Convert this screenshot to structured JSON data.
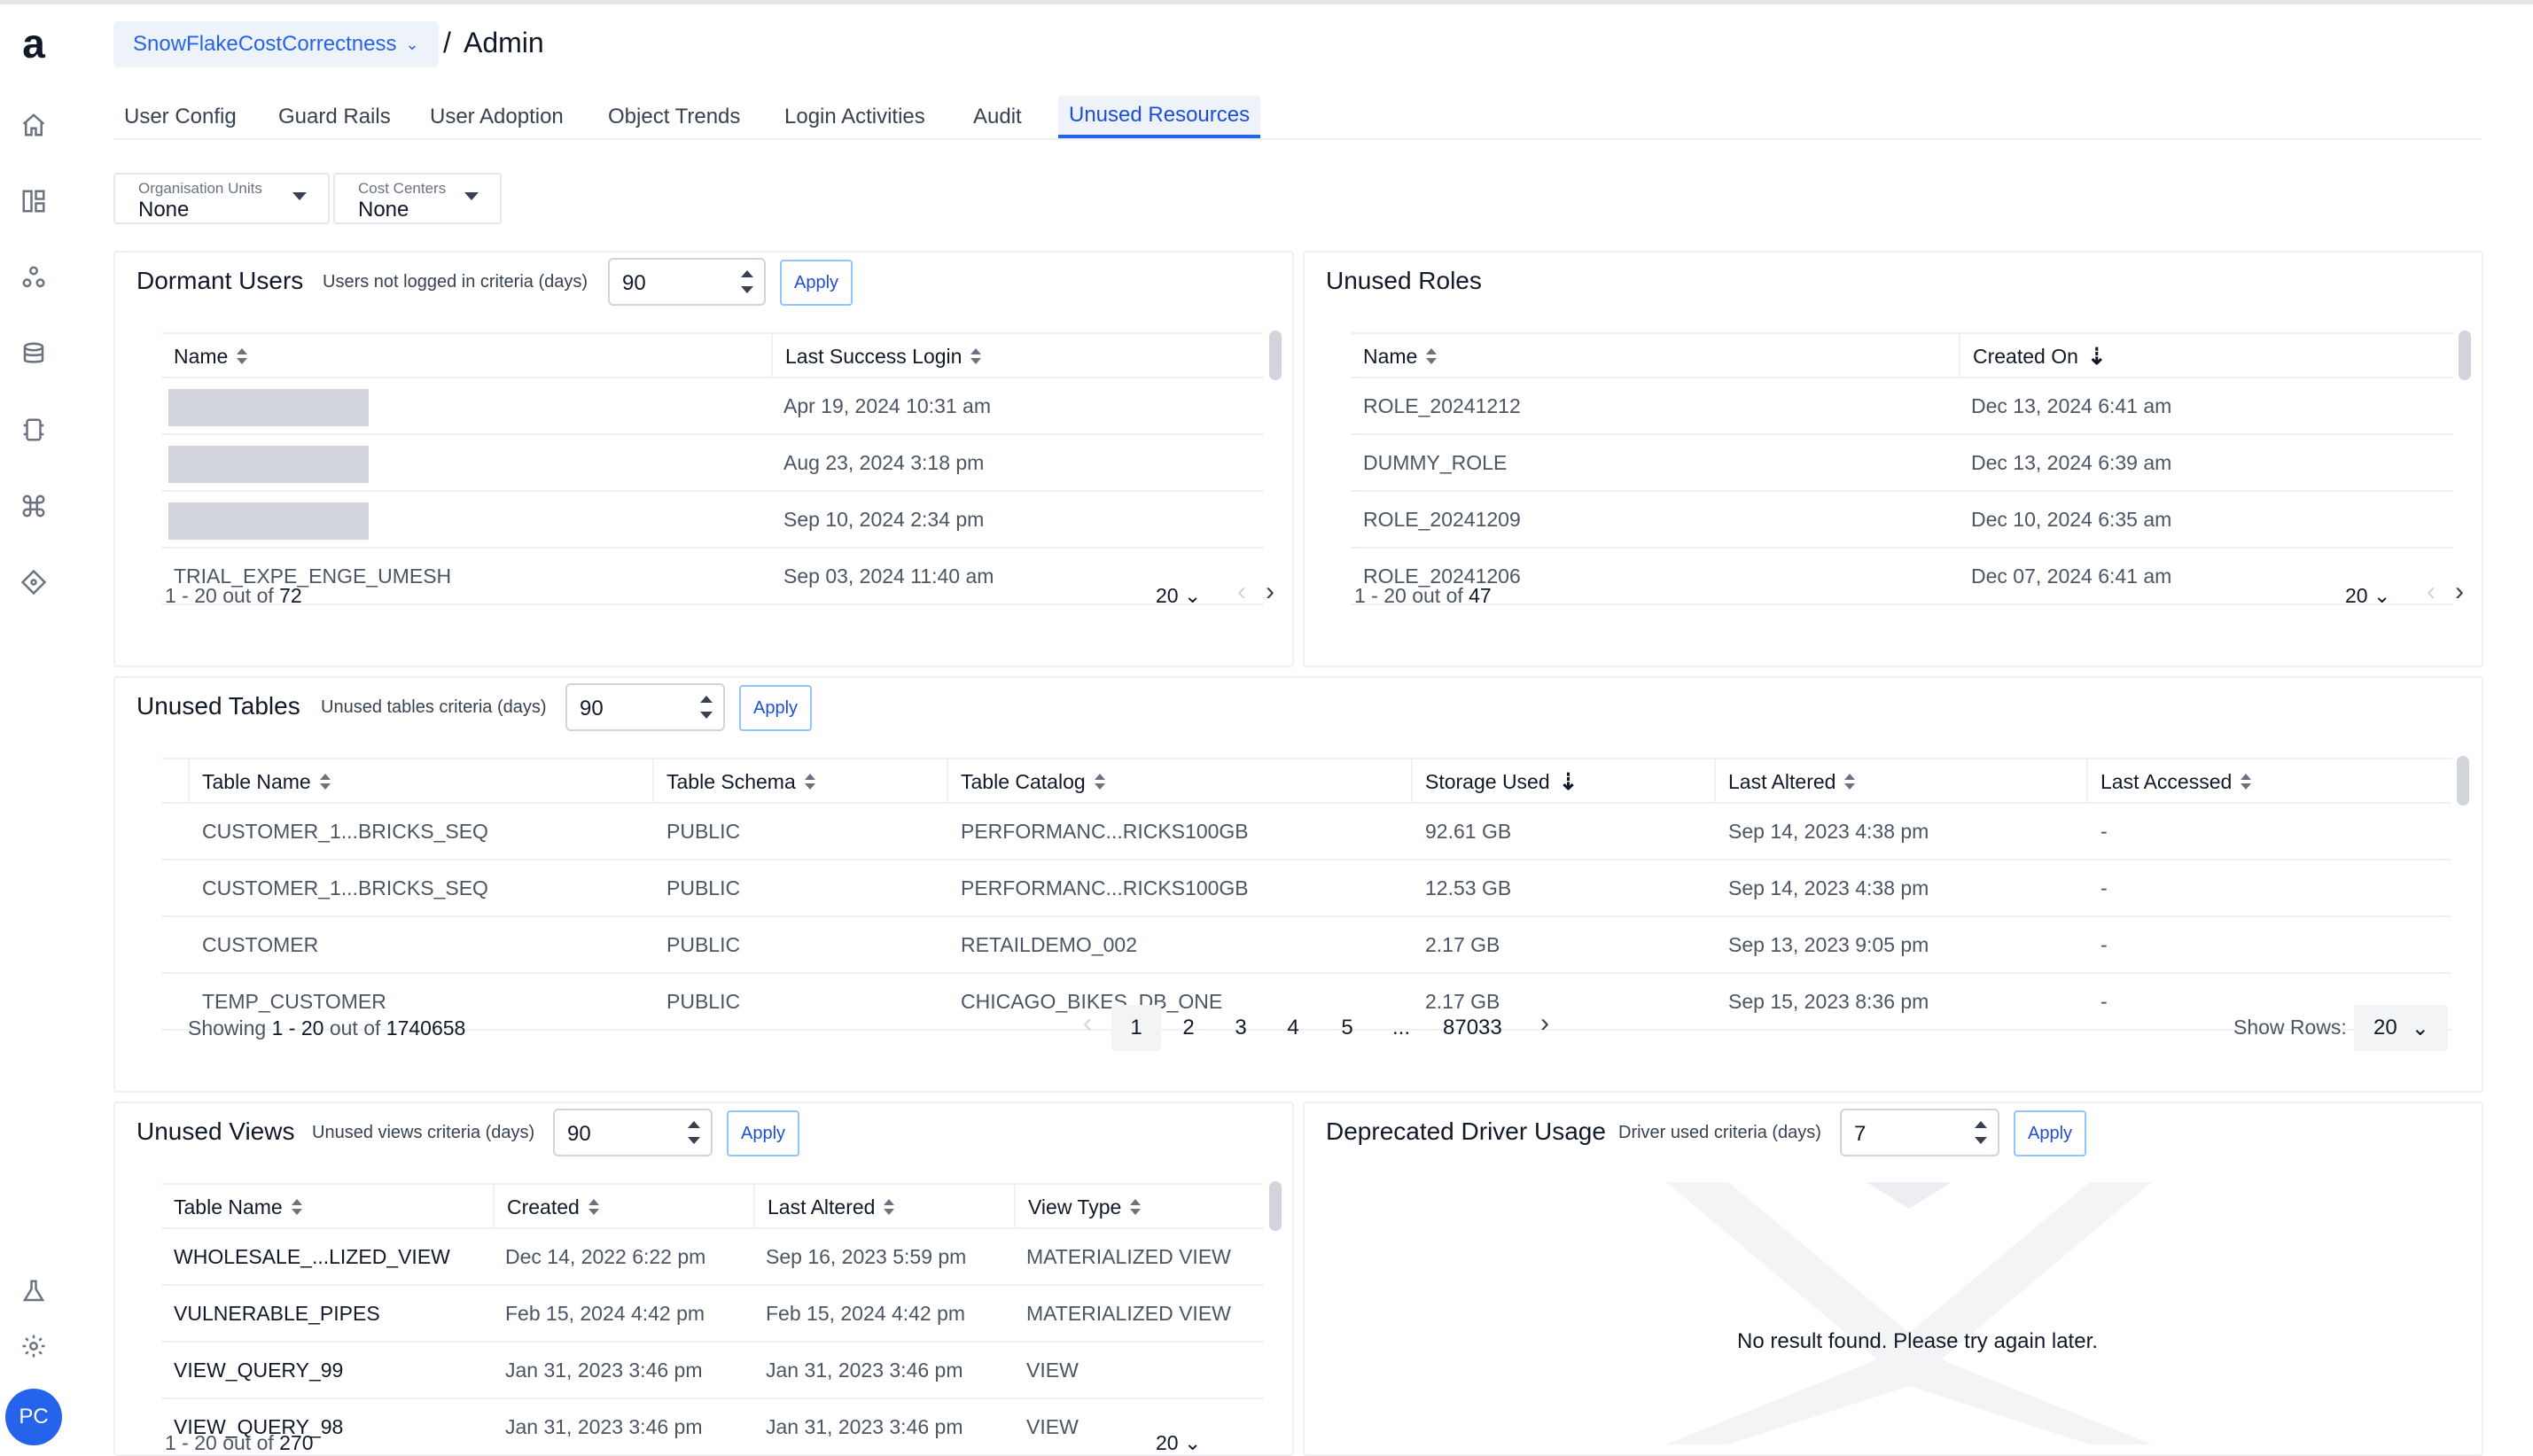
{
  "sidebar": {
    "logo": "a",
    "icons": [
      "home-icon",
      "dashboard-icon",
      "cluster-icon",
      "database-icon",
      "device-icon",
      "command-icon",
      "tag-icon",
      "lab-flask-icon",
      "gear-icon"
    ],
    "avatar_initials": "PC"
  },
  "header": {
    "account": "SnowFlakeCostCorrectness",
    "separator": "/",
    "page": "Admin"
  },
  "tabs": [
    "User Config",
    "Guard Rails",
    "User Adoption",
    "Object Trends",
    "Login Activities",
    "Audit",
    "Unused Resources"
  ],
  "active_tab": "Unused Resources",
  "filters": {
    "org_units": {
      "label": "Organisation Units",
      "value": "None"
    },
    "cost_centers": {
      "label": "Cost Centers",
      "value": "None"
    }
  },
  "dormant_users": {
    "title": "Dormant Users",
    "criteria_label": "Users not logged in criteria (days)",
    "criteria_value": "90",
    "apply": "Apply",
    "columns": [
      "Name",
      "Last Success Login"
    ],
    "rows": [
      {
        "name": "",
        "last_login": "Apr 19, 2024 10:31 am"
      },
      {
        "name": "",
        "last_login": "Aug 23, 2024 3:18 pm"
      },
      {
        "name": "",
        "last_login": "Sep 10, 2024 2:34 pm"
      },
      {
        "name": "TRIAL_EXPE_ENGE_UMESH",
        "last_login": "Sep 03, 2024 11:40 am"
      }
    ],
    "range_prefix": "1 - 20 out of",
    "total": "72",
    "page_size": "20"
  },
  "unused_roles": {
    "title": "Unused Roles",
    "columns": [
      "Name",
      "Created On"
    ],
    "rows": [
      {
        "name": "ROLE_20241212",
        "created": "Dec 13, 2024 6:41 am"
      },
      {
        "name": "DUMMY_ROLE",
        "created": "Dec 13, 2024 6:39 am"
      },
      {
        "name": "ROLE_20241209",
        "created": "Dec 10, 2024 6:35 am"
      },
      {
        "name": "ROLE_20241206",
        "created": "Dec 07, 2024 6:41 am"
      }
    ],
    "range_prefix": "1 - 20 out of",
    "total": "47",
    "page_size": "20"
  },
  "unused_tables": {
    "title": "Unused Tables",
    "criteria_label": "Unused tables criteria (days)",
    "criteria_value": "90",
    "apply": "Apply",
    "columns": [
      "Table Name",
      "Table Schema",
      "Table Catalog",
      "Storage Used",
      "Last Altered",
      "Last Accessed"
    ],
    "rows": [
      {
        "name": "CUSTOMER_1...BRICKS_SEQ",
        "schema": "PUBLIC",
        "catalog": "PERFORMANC...RICKS100GB",
        "storage": "92.61 GB",
        "altered": "Sep 14, 2023 4:38 pm",
        "accessed": "-"
      },
      {
        "name": "CUSTOMER_1...BRICKS_SEQ",
        "schema": "PUBLIC",
        "catalog": "PERFORMANC...RICKS100GB",
        "storage": "12.53 GB",
        "altered": "Sep 14, 2023 4:38 pm",
        "accessed": "-"
      },
      {
        "name": "CUSTOMER",
        "schema": "PUBLIC",
        "catalog": "RETAILDEMO_002",
        "storage": "2.17 GB",
        "altered": "Sep 13, 2023 9:05 pm",
        "accessed": "-"
      },
      {
        "name": "TEMP_CUSTOMER",
        "schema": "PUBLIC",
        "catalog": "CHICAGO_BIKES_DB_ONE",
        "storage": "2.17 GB",
        "altered": "Sep 15, 2023 8:36 pm",
        "accessed": "-"
      }
    ],
    "showing_prefix": "Showing",
    "showing_range": "1 - 20",
    "showing_mid": "out of",
    "total": "1740658",
    "pages": [
      "1",
      "2",
      "3",
      "4",
      "5",
      "...",
      "87033"
    ],
    "show_rows_label": "Show Rows:",
    "show_rows_value": "20"
  },
  "unused_views": {
    "title": "Unused Views",
    "criteria_label": "Unused views criteria (days)",
    "criteria_value": "90",
    "apply": "Apply",
    "columns": [
      "Table Name",
      "Created",
      "Last Altered",
      "View Type"
    ],
    "rows": [
      {
        "name": "WHOLESALE_...LIZED_VIEW",
        "created": "Dec 14, 2022 6:22 pm",
        "altered": "Sep 16, 2023 5:59 pm",
        "type": "MATERIALIZED VIEW"
      },
      {
        "name": "VULNERABLE_PIPES",
        "created": "Feb 15, 2024 4:42 pm",
        "altered": "Feb 15, 2024 4:42 pm",
        "type": "MATERIALIZED VIEW"
      },
      {
        "name": "VIEW_QUERY_99",
        "created": "Jan 31, 2023 3:46 pm",
        "altered": "Jan 31, 2023 3:46 pm",
        "type": "VIEW"
      },
      {
        "name": "VIEW_QUERY_98",
        "created": "Jan 31, 2023 3:46 pm",
        "altered": "Jan 31, 2023 3:46 pm",
        "type": "VIEW"
      }
    ],
    "range_prefix": "1 - 20 out of",
    "total": "270",
    "page_size": "20"
  },
  "deprecated_driver": {
    "title": "Deprecated Driver Usage",
    "criteria_label": "Driver used criteria (days)",
    "criteria_value": "7",
    "apply": "Apply",
    "empty_message": "No result found. Please try again later."
  },
  "colors": {
    "accent": "#2563eb",
    "border": "#eef0f3",
    "text": "#1f2937",
    "muted": "#4b5563"
  }
}
